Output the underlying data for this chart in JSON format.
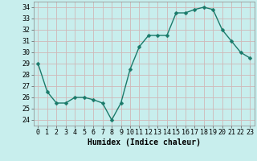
{
  "x": [
    0,
    1,
    2,
    3,
    4,
    5,
    6,
    7,
    8,
    9,
    10,
    11,
    12,
    13,
    14,
    15,
    16,
    17,
    18,
    19,
    20,
    21,
    22,
    23
  ],
  "y": [
    29,
    26.5,
    25.5,
    25.5,
    26,
    26,
    25.8,
    25.5,
    24,
    25.5,
    28.5,
    30.5,
    31.5,
    31.5,
    31.5,
    33.5,
    33.5,
    33.8,
    34,
    33.8,
    32,
    31,
    30,
    29.5
  ],
  "line_color": "#1a7a6a",
  "marker_color": "#1a7a6a",
  "bg_color": "#c8eeed",
  "grid_color": "#d0b8b8",
  "xlabel": "Humidex (Indice chaleur)",
  "ylabel_ticks": [
    24,
    25,
    26,
    27,
    28,
    29,
    30,
    31,
    32,
    33,
    34
  ],
  "ylim": [
    23.5,
    34.5
  ],
  "xlim": [
    -0.5,
    23.5
  ],
  "xlabel_fontsize": 7,
  "tick_fontsize": 6,
  "line_width": 1.0,
  "marker_size": 2.5
}
